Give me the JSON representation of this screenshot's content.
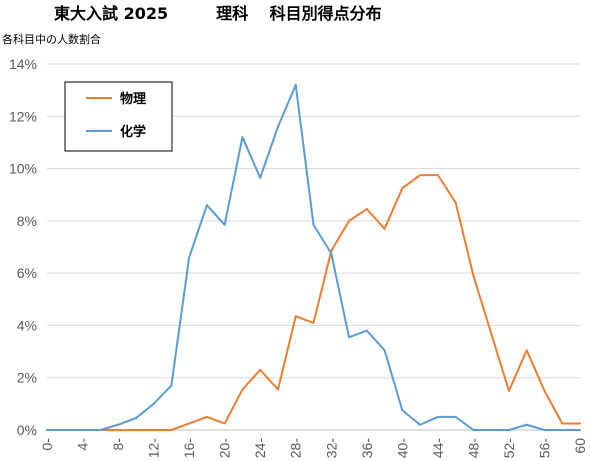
{
  "chart_data": {
    "type": "line",
    "title": "東大入試 2025　　　理科　 科目別得点分布",
    "ylabel": "各科目中の人数割合",
    "xlabel": "",
    "x": [
      0,
      2,
      4,
      6,
      8,
      10,
      12,
      14,
      16,
      18,
      20,
      22,
      24,
      26,
      28,
      30,
      32,
      34,
      36,
      38,
      40,
      42,
      44,
      46,
      48,
      50,
      52,
      54,
      56,
      58,
      60
    ],
    "x_tick_labels": [
      "0-",
      "4-",
      "8-",
      "12-",
      "16-",
      "20-",
      "24-",
      "28-",
      "32-",
      "36-",
      "40-",
      "44-",
      "48-",
      "52-",
      "56-",
      "60"
    ],
    "x_ticks": [
      0,
      4,
      8,
      12,
      16,
      20,
      24,
      28,
      32,
      36,
      40,
      44,
      48,
      52,
      56,
      60
    ],
    "y_tick_labels": [
      "0%",
      "2%",
      "4%",
      "6%",
      "8%",
      "10%",
      "12%",
      "14%"
    ],
    "ylim": [
      0,
      14
    ],
    "xlim": [
      0,
      60
    ],
    "grid": true,
    "legend_position": "top-left",
    "series": [
      {
        "name": "物理",
        "color": "#ED7D31",
        "values": [
          0,
          0,
          0,
          0,
          0,
          0,
          0,
          0,
          0.25,
          0.5,
          0.25,
          1.55,
          2.3,
          1.55,
          4.35,
          4.1,
          6.85,
          8.0,
          8.45,
          7.7,
          9.25,
          9.75,
          9.75,
          8.7,
          5.9,
          3.7,
          1.5,
          3.05,
          1.5,
          0.25,
          0.25
        ]
      },
      {
        "name": "化学",
        "color": "#5B9BD5",
        "values": [
          0,
          0,
          0,
          0,
          0.2,
          0.45,
          1.0,
          1.7,
          6.6,
          8.6,
          7.85,
          11.2,
          9.65,
          11.6,
          13.2,
          7.85,
          6.75,
          3.55,
          3.8,
          3.05,
          0.75,
          0.2,
          0.5,
          0.5,
          0,
          0,
          0,
          0.2,
          0,
          0,
          0
        ]
      }
    ]
  }
}
